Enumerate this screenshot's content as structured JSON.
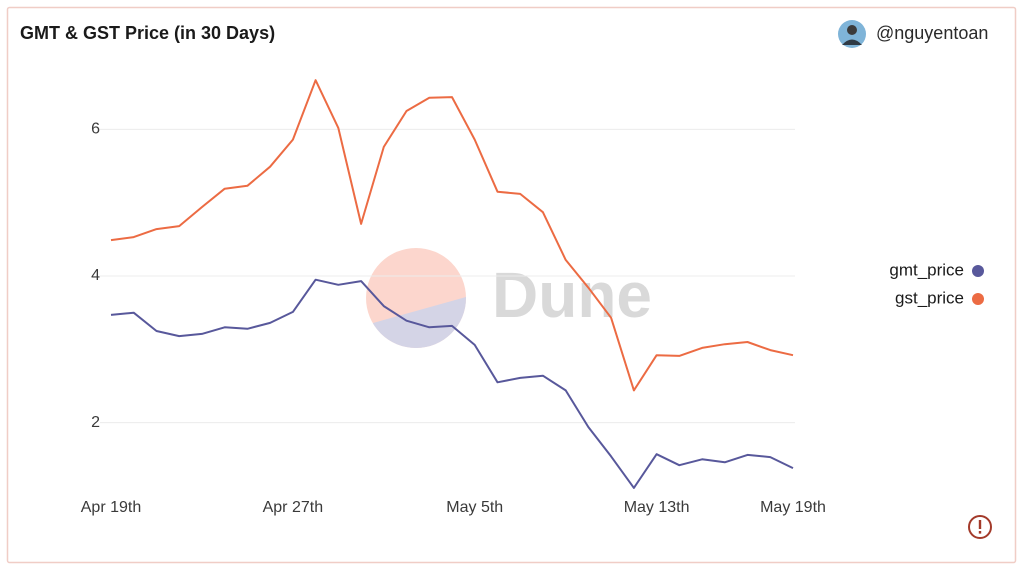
{
  "chart_data": {
    "type": "line",
    "title": "GMT & GST Price (in 30 Days)",
    "author": "@nguyentoan",
    "watermark": "Dune",
    "categories": [
      "Apr 19th",
      null,
      null,
      null,
      null,
      null,
      null,
      null,
      "Apr 27th",
      null,
      null,
      null,
      null,
      null,
      null,
      null,
      "May 5th",
      null,
      null,
      null,
      null,
      null,
      null,
      null,
      "May 13th",
      null,
      null,
      null,
      null,
      null,
      "May 19th"
    ],
    "series": [
      {
        "name": "gmt_price",
        "color": "#58589b",
        "values": [
          3.47,
          3.5,
          3.25,
          3.18,
          3.21,
          3.3,
          3.28,
          3.36,
          3.51,
          3.95,
          3.88,
          3.93,
          3.59,
          3.39,
          3.3,
          3.32,
          3.06,
          2.55,
          2.61,
          2.64,
          2.44,
          1.94,
          1.54,
          1.11,
          1.57,
          1.42,
          1.5,
          1.46,
          1.56,
          1.53,
          1.38
        ]
      },
      {
        "name": "gst_price",
        "color": "#ec6b43",
        "values": [
          4.49,
          4.53,
          4.64,
          4.68,
          4.94,
          5.19,
          5.23,
          5.49,
          5.86,
          6.67,
          6.02,
          4.71,
          5.76,
          6.25,
          6.43,
          6.44,
          5.86,
          5.15,
          5.12,
          4.87,
          4.22,
          3.84,
          3.43,
          2.44,
          2.92,
          2.91,
          3.02,
          3.07,
          3.1,
          2.99,
          2.92
        ]
      }
    ],
    "ylim": [
      1,
      7
    ],
    "yticks": [
      2,
      4,
      6
    ],
    "grid": true,
    "legend": "right"
  }
}
